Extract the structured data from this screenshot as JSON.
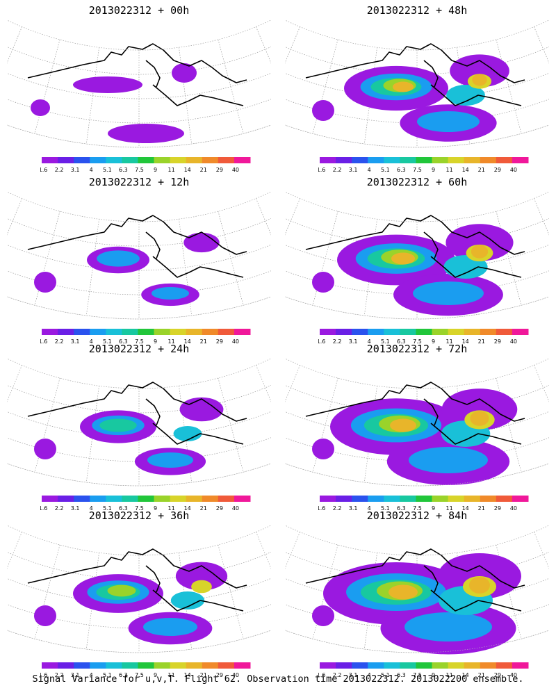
{
  "panels": [
    {
      "title": "2013022312 + 00h",
      "lead_hours": 0
    },
    {
      "title": "2013022312 + 48h",
      "lead_hours": 48
    },
    {
      "title": "2013022312 + 12h",
      "lead_hours": 12
    },
    {
      "title": "2013022312 + 60h",
      "lead_hours": 60
    },
    {
      "title": "2013022312 + 24h",
      "lead_hours": 24
    },
    {
      "title": "2013022312 + 72h",
      "lead_hours": 72
    },
    {
      "title": "2013022312 + 36h",
      "lead_hours": 36
    },
    {
      "title": "2013022312 + 84h",
      "lead_hours": 84
    }
  ],
  "colorbar": {
    "labels": [
      "1.6",
      "2.2",
      "3.1",
      "4",
      "5.1",
      "6.3",
      "7.5",
      "9",
      "11",
      "14",
      "21",
      "29",
      "40"
    ],
    "colors": [
      "#9a19e0",
      "#6a1fe6",
      "#2a52ee",
      "#1a9df0",
      "#19c0d8",
      "#18c8a0",
      "#21c63a",
      "#9ad32a",
      "#d8d42a",
      "#e8b52a",
      "#f08a2a",
      "#f05a3a",
      "#f0189a"
    ]
  },
  "footer": "Signal Variance for u,v,T. Flight 62. Observation time 2013022312. 2013022200 ensemble.",
  "chart_data": {
    "type": "heatmap",
    "variable": "Signal Variance for u,v,T",
    "levels": [
      1.6,
      2.2,
      3.1,
      4,
      5.1,
      6.3,
      7.5,
      9,
      11,
      14,
      21,
      29,
      40
    ],
    "lead_times_h": [
      0,
      12,
      24,
      36,
      48,
      60,
      72,
      84
    ]
  }
}
